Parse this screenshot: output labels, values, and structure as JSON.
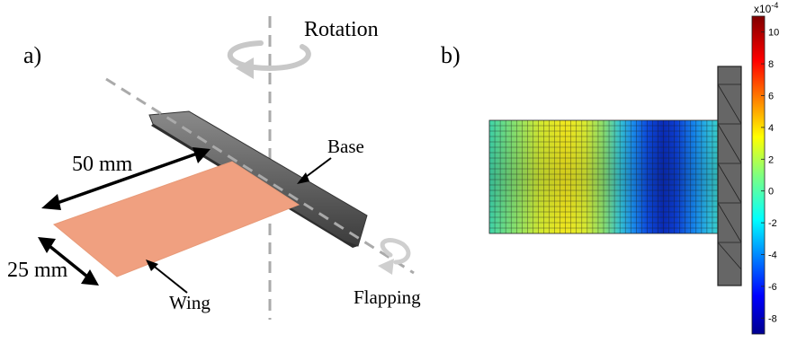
{
  "panel_a": {
    "label": "a)",
    "rotation_label": "Rotation",
    "length_label": "50 mm",
    "width_label": "25 mm",
    "base_label": "Base",
    "wing_label": "Wing",
    "flapping_label": "Flapping"
  },
  "panel_b": {
    "label": "b)",
    "colorbar": {
      "exponent_base": "x10",
      "exponent_power": "-4",
      "ticks": [
        "10",
        "8",
        "6",
        "4",
        "2",
        "0",
        "-2",
        "-4",
        "-6",
        "-8"
      ],
      "range": [
        -9,
        11
      ]
    }
  },
  "colors": {
    "wing": "#f0a080",
    "base": "#555555",
    "axis_dash": "#aaaaaa",
    "rotation_arrow": "#c8c8c8",
    "mesh_line": "#1a1a1a",
    "clamp": "#666666"
  }
}
